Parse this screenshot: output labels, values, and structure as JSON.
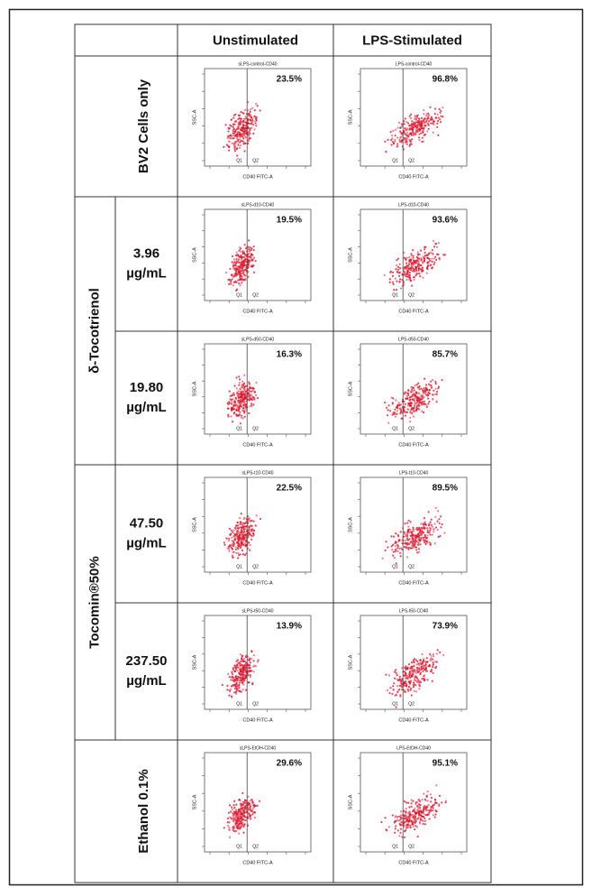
{
  "header": {
    "columns": [
      "Unstimulated",
      "LPS-Stimulated"
    ]
  },
  "plot_axes": {
    "y": "SSC-A",
    "x": "CD40 FITC-A",
    "q1": "Q1",
    "q2": "Q2"
  },
  "groups": [
    {
      "label": "BV2 Cells only",
      "cells": [
        {
          "title": "sLPS-control-CD40",
          "percent": "23.5%"
        },
        {
          "title": "LPS-control-CD40",
          "percent": "96.8%"
        }
      ]
    },
    {
      "label": "δ-Tocotrienol",
      "rows": [
        {
          "value": "3.96",
          "unit": "µg/mL",
          "cells": [
            {
              "title": "sLPS-d10-CD40",
              "percent": "19.5%"
            },
            {
              "title": "LPS-d10-CD40",
              "percent": "93.6%"
            }
          ]
        },
        {
          "value": "19.80",
          "unit": "µg/mL",
          "cells": [
            {
              "title": "sLPS-d50-CD40",
              "percent": "16.3%"
            },
            {
              "title": "LPS-d50-CD40",
              "percent": "85.7%"
            }
          ]
        }
      ]
    },
    {
      "label": "Tocomin®50%",
      "rows": [
        {
          "value": "47.50",
          "unit": "µg/mL",
          "cells": [
            {
              "title": "sLPS-t10-CD40",
              "percent": "22.5%"
            },
            {
              "title": "LPS-t10-CD40",
              "percent": "89.5%"
            }
          ]
        },
        {
          "value": "237.50",
          "unit": "µg/mL",
          "cells": [
            {
              "title": "sLPS-t50-CD40",
              "percent": "13.9%"
            },
            {
              "title": "LPS-t50-CD40",
              "percent": "73.9%"
            }
          ]
        }
      ]
    },
    {
      "label": "Ethanol 0.1%",
      "cells": [
        {
          "title": "sLPS-EtOH-CD40",
          "percent": "29.6%"
        },
        {
          "title": "LPS-EtOH-CD40",
          "percent": "95.1%"
        }
      ]
    }
  ]
}
